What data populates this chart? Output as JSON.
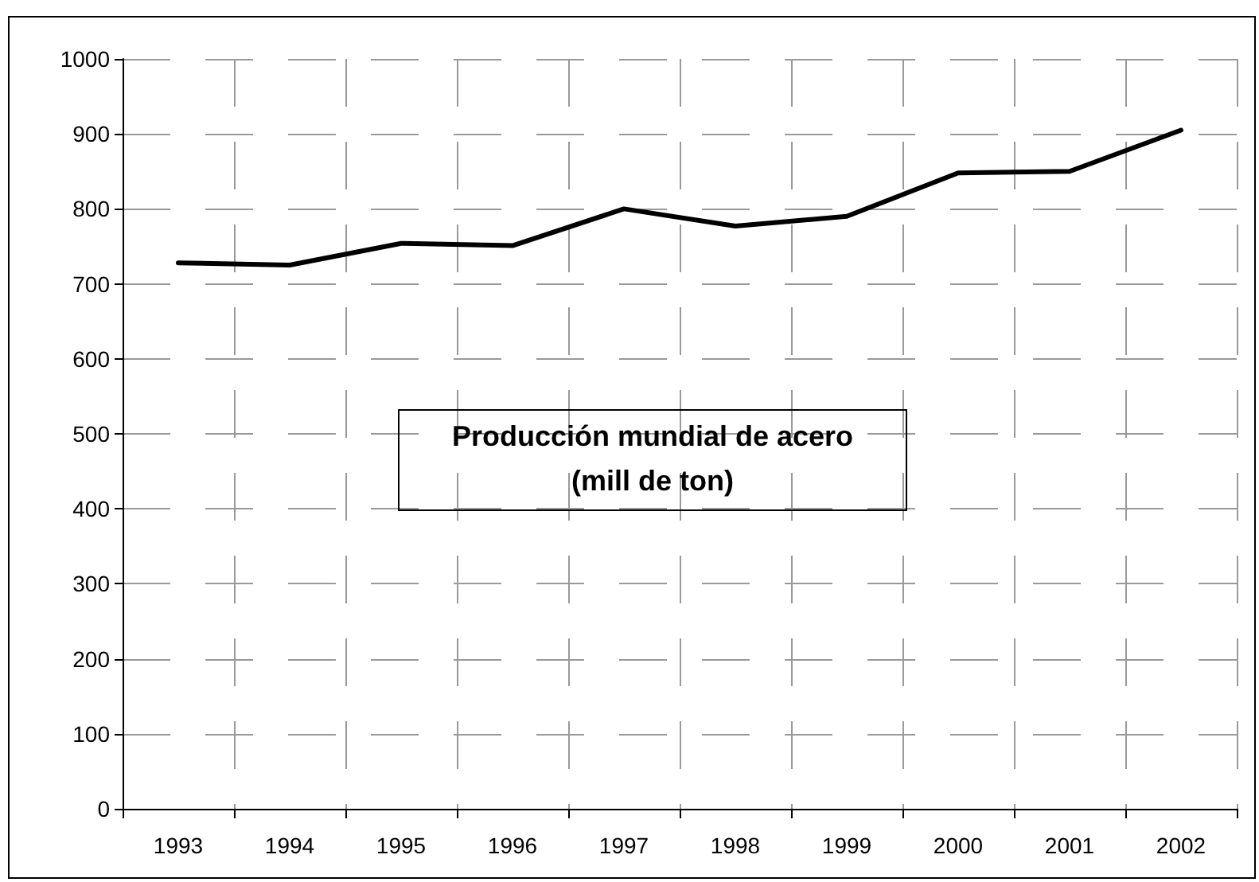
{
  "chart_data": {
    "type": "line",
    "title": "Producción mundial de acero",
    "subtitle": "(mill de ton)",
    "categories": [
      "1993",
      "1994",
      "1995",
      "1996",
      "1997",
      "1998",
      "1999",
      "2000",
      "2001",
      "2002"
    ],
    "series": [
      {
        "color": "#000000",
        "values": [
          728,
          725,
          754,
          751,
          800,
          777,
          790,
          848,
          850,
          905
        ]
      }
    ],
    "ylim": [
      0,
      1000
    ],
    "yticks": [
      0,
      100,
      200,
      300,
      400,
      500,
      600,
      700,
      800,
      900,
      1000
    ],
    "grid": true,
    "marker": "none",
    "line_style": "solid"
  }
}
